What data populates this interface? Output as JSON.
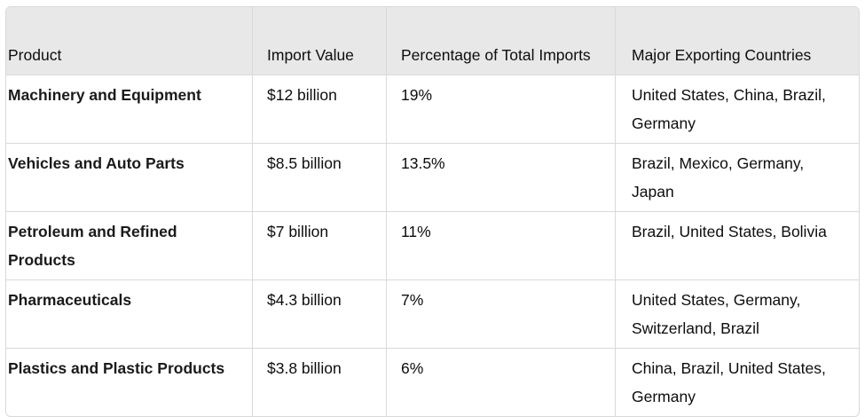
{
  "table": {
    "headers": {
      "product": "Product",
      "import_value": "Import Value",
      "percentage": "Percentage of Total Imports",
      "exporters": "Major Exporting Countries"
    },
    "rows": [
      {
        "product": "Machinery and Equipment",
        "import_value": "$12 billion",
        "percentage": "19%",
        "exporters": "United States, China, Brazil, Germany"
      },
      {
        "product": "Vehicles and Auto Parts",
        "import_value": "$8.5 billion",
        "percentage": "13.5%",
        "exporters": "Brazil, Mexico, Germany, Japan"
      },
      {
        "product": "Petroleum and Refined Products",
        "import_value": "$7 billion",
        "percentage": "11%",
        "exporters": "Brazil, United States, Bolivia"
      },
      {
        "product": "Pharmaceuticals",
        "import_value": "$4.3 billion",
        "percentage": "7%",
        "exporters": "United States, Germany, Switzerland, Brazil"
      },
      {
        "product": "Plastics and Plastic Products",
        "import_value": "$3.8 billion",
        "percentage": "6%",
        "exporters": "China, Brazil, United States, Germany"
      }
    ]
  }
}
